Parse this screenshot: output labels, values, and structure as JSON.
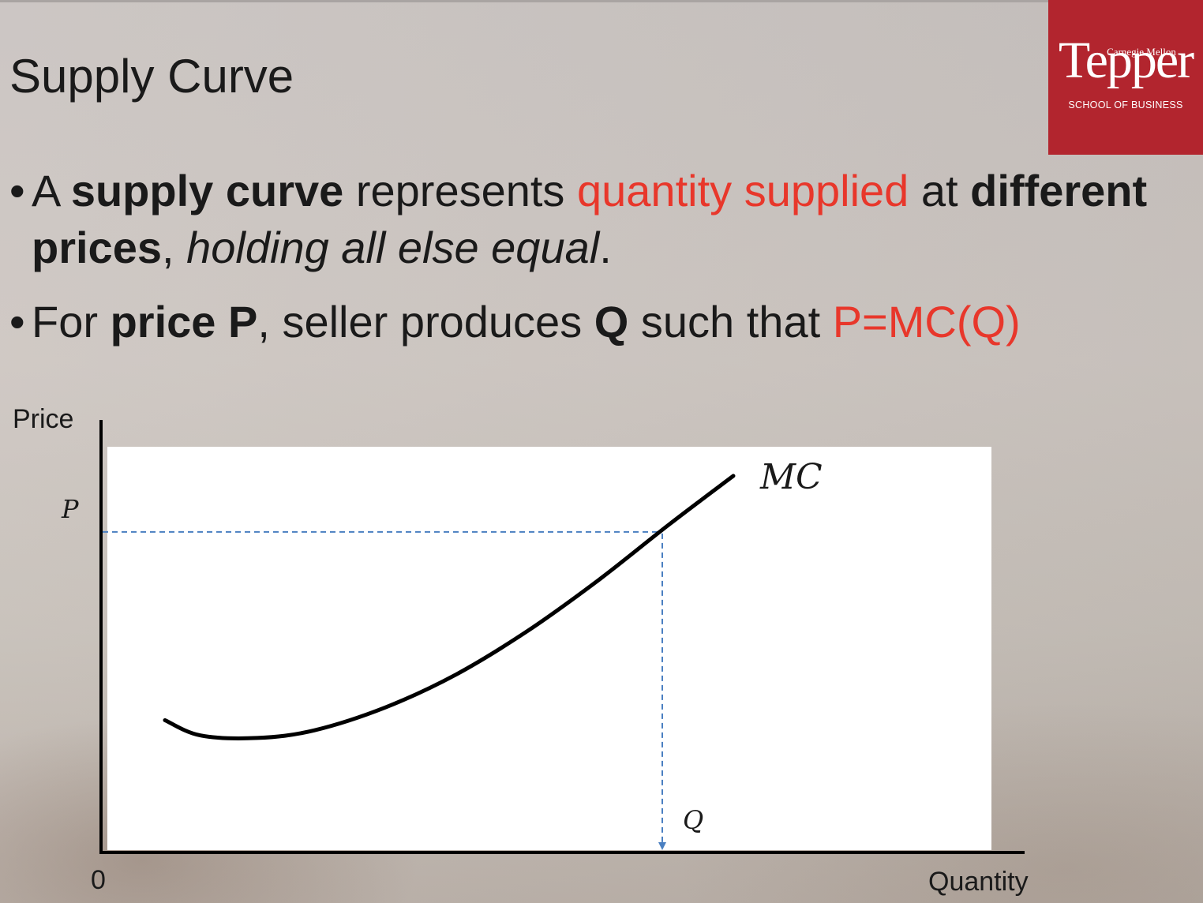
{
  "slide": {
    "title": "Supply Curve",
    "logo": {
      "line1": "Carnegie Mellon",
      "line2": "Tepper",
      "line3": "SCHOOL OF BUSINESS",
      "color": "#b2252e"
    },
    "bullets": [
      {
        "segments": [
          {
            "text": "A ",
            "style": "normal"
          },
          {
            "text": "supply curve",
            "style": "bold"
          },
          {
            "text": " represents ",
            "style": "normal"
          },
          {
            "text": "quantity supplied",
            "style": "red"
          },
          {
            "text": " at ",
            "style": "normal"
          },
          {
            "text": "different prices",
            "style": "bold"
          },
          {
            "text": ", ",
            "style": "normal"
          },
          {
            "text": "holding all else equal",
            "style": "italic"
          },
          {
            "text": ".",
            "style": "normal"
          }
        ]
      },
      {
        "segments": [
          {
            "text": "For ",
            "style": "normal"
          },
          {
            "text": "price P",
            "style": "bold"
          },
          {
            "text": ", seller produces ",
            "style": "normal"
          },
          {
            "text": "Q",
            "style": "bold"
          },
          {
            "text": " such that ",
            "style": "normal"
          },
          {
            "text": "P=MC(Q)",
            "style": "red"
          }
        ]
      }
    ],
    "accent_color": "#e8372b"
  },
  "chart_data": {
    "type": "line",
    "ylabel": "Price",
    "xlabel": "Quantity",
    "origin_label": "0",
    "series": [
      {
        "name": "MC",
        "x": [
          0.9,
          1.4,
          2.2,
          3.0,
          4.0,
          5.0,
          6.0,
          7.0,
          8.0,
          8.9
        ],
        "y": [
          2.6,
          2.3,
          2.25,
          2.4,
          2.85,
          3.5,
          4.35,
          5.35,
          6.45,
          7.4
        ],
        "color": "#000000"
      }
    ],
    "annotations": {
      "price_label": "P",
      "quantity_label": "Q",
      "point": {
        "x": 7.9,
        "y": 6.3
      },
      "guide_color": "#4a7fc1"
    },
    "xlim": [
      0,
      13
    ],
    "ylim": [
      0,
      8.5
    ],
    "plot_background": "#ffffff",
    "grid": false
  }
}
